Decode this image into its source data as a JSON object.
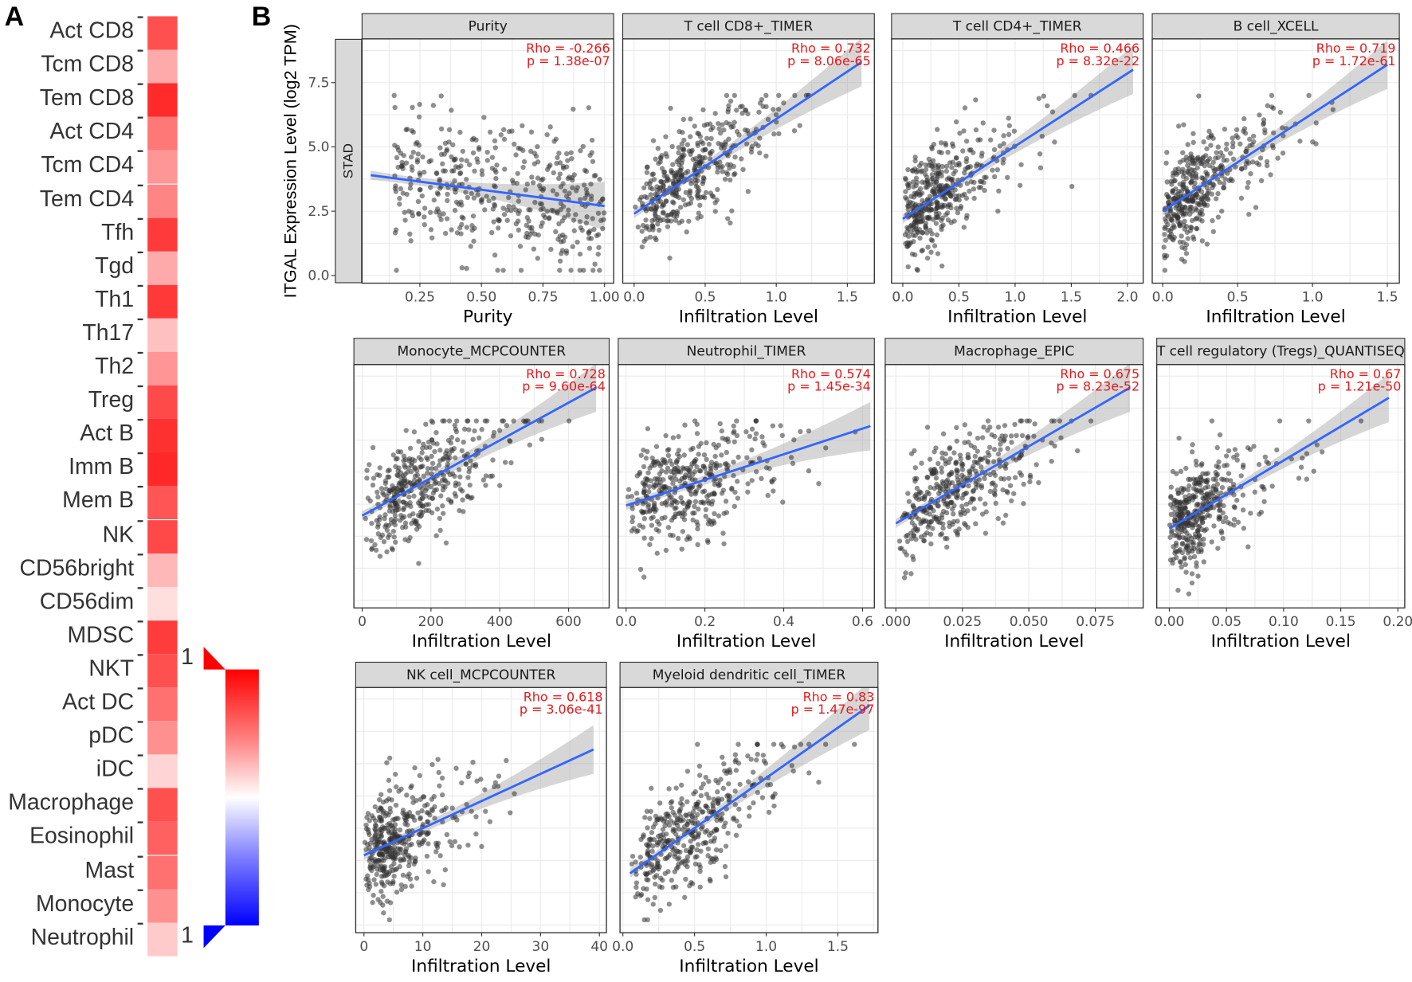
{
  "figure": {
    "panel_a_label": "A",
    "panel_b_label": "B"
  },
  "heatmap": {
    "rows": [
      {
        "label": "Act CD8",
        "color": "#ff5050"
      },
      {
        "label": "Tcm CD8",
        "color": "#ffaaaa"
      },
      {
        "label": "Tem CD8",
        "color": "#ff2a2a"
      },
      {
        "label": "Act CD4",
        "color": "#ff7878"
      },
      {
        "label": "Tcm CD4",
        "color": "#ff9696"
      },
      {
        "label": "Tem CD4",
        "color": "#ff8484"
      },
      {
        "label": "Tfh",
        "color": "#ff3a3a"
      },
      {
        "label": "Tgd",
        "color": "#ffaaaa"
      },
      {
        "label": "Th1",
        "color": "#ff3838"
      },
      {
        "label": "Th17",
        "color": "#ffc0c0"
      },
      {
        "label": "Th2",
        "color": "#ff9595"
      },
      {
        "label": "Treg",
        "color": "#ff4a4a"
      },
      {
        "label": "Act B",
        "color": "#ff3030"
      },
      {
        "label": "Imm B",
        "color": "#ff2828"
      },
      {
        "label": "Mem B",
        "color": "#ff5555"
      },
      {
        "label": "NK",
        "color": "#ff4848"
      },
      {
        "label": "CD56bright",
        "color": "#ffb8b8"
      },
      {
        "label": "CD56dim",
        "color": "#ffdede"
      },
      {
        "label": "MDSC",
        "color": "#ff3c3c"
      },
      {
        "label": "NKT",
        "color": "#ff5050"
      },
      {
        "label": "Act DC",
        "color": "#ff7070"
      },
      {
        "label": "pDC",
        "color": "#ff9090"
      },
      {
        "label": "iDC",
        "color": "#ffd4d4"
      },
      {
        "label": "Macrophage",
        "color": "#ff5050"
      },
      {
        "label": "Eosinophil",
        "color": "#ff6060"
      },
      {
        "label": "Mast",
        "color": "#ff7070"
      },
      {
        "label": "Monocyte",
        "color": "#ff9090"
      },
      {
        "label": "Neutrophil",
        "color": "#ffcaca"
      }
    ],
    "legend": {
      "top_label": "1",
      "bottom_label": "1",
      "high_color": "#ff0000",
      "low_color": "#0000ff"
    }
  },
  "chart_data": {
    "type": "scatter",
    "row_strip": "STAD",
    "ylabel": "ITGAL Expression Level (log2 TPM)",
    "ylim": [
      -0.3,
      9.2
    ],
    "yticks": [
      "0.0",
      "2.5",
      "5.0",
      "7.5"
    ],
    "ytick_values": [
      0,
      2.5,
      5,
      7.5
    ],
    "point_color": "#333333",
    "line_color": "#3366ff",
    "annotation_color": "#e41a1c",
    "panels": [
      {
        "title": "Purity",
        "xlabel": "Purity",
        "rho": "Rho = -0.266",
        "p": "p = 1.38e-07",
        "xlim": [
          0.015,
          1.037
        ],
        "xticks": [
          0.25,
          0.5,
          0.75,
          1.0
        ],
        "xtick_labels": [
          "0.25",
          "0.50",
          "0.75",
          "1.00"
        ],
        "fit": [
          [
            0.05,
            3.9
          ],
          [
            1.0,
            2.7
          ]
        ],
        "n": 420,
        "dist": "uniform"
      },
      {
        "title": "T cell CD8+_TIMER",
        "xlabel": "Infiltration Level",
        "rho": "Rho = 0.732",
        "p": "p = 8.06e-65",
        "xlim": [
          -0.08,
          1.69
        ],
        "xticks": [
          0,
          0.5,
          1.0,
          1.5
        ],
        "xtick_labels": [
          "0.0",
          "0.5",
          "1.0",
          "1.5"
        ],
        "fit": [
          [
            0,
            2.4
          ],
          [
            1.6,
            8.3
          ]
        ],
        "n": 400,
        "dist": "skew"
      },
      {
        "title": "T cell CD4+_TIMER",
        "xlabel": "Infiltration Level",
        "rho": "Rho = 0.466",
        "p": "p = 8.32e-22",
        "xlim": [
          -0.1,
          2.14
        ],
        "xticks": [
          0,
          0.5,
          1.0,
          1.5,
          2.0
        ],
        "xtick_labels": [
          "0.0",
          "0.5",
          "1.0",
          "1.5",
          "2.0"
        ],
        "fit": [
          [
            0,
            2.2
          ],
          [
            2.05,
            8.0
          ]
        ],
        "n": 400,
        "dist": "tight"
      },
      {
        "title": "B cell_XCELL",
        "xlabel": "Infiltration Level",
        "rho": "Rho = 0.719",
        "p": "p = 1.72e-61",
        "xlim": [
          -0.07,
          1.58
        ],
        "xticks": [
          0,
          0.5,
          1.0,
          1.5
        ],
        "xtick_labels": [
          "0.0",
          "0.5",
          "1.0",
          "1.5"
        ],
        "fit": [
          [
            0,
            2.5
          ],
          [
            1.5,
            8.2
          ]
        ],
        "n": 400,
        "dist": "tight"
      },
      {
        "title": "Monocyte_MCPCOUNTER",
        "xlabel": "Infiltration Level",
        "rho": "Rho = 0.728",
        "p": "p = 9.60e-64",
        "xlim": [
          -24,
          718
        ],
        "xticks": [
          0,
          200,
          400,
          600
        ],
        "xtick_labels": [
          "0",
          "200",
          "400",
          "600"
        ],
        "fit": [
          [
            0,
            3.3
          ],
          [
            680,
            8.3
          ]
        ],
        "n": 400,
        "dist": "skew"
      },
      {
        "title": "Neutrophil_TIMER",
        "xlabel": "Infiltration Level",
        "rho": "Rho = 0.574",
        "p": "p = 1.45e-34",
        "xlim": [
          -0.02,
          0.63
        ],
        "xticks": [
          0,
          0.2,
          0.4,
          0.6
        ],
        "xtick_labels": [
          "0.0",
          "0.2",
          "0.4",
          "0.6"
        ],
        "fit": [
          [
            0,
            3.7
          ],
          [
            0.62,
            6.8
          ]
        ],
        "n": 400,
        "dist": "skew"
      },
      {
        "title": "Macrophage_EPIC",
        "xlabel": "Infiltration Level",
        "rho": "Rho = 0.675",
        "p": "p = 8.23e-52",
        "xlim": [
          -0.004,
          0.093
        ],
        "xticks": [
          0,
          0.025,
          0.05,
          0.075
        ],
        "xtick_labels": [
          ".000",
          "0.025",
          "0.050",
          "0.075"
        ],
        "fit": [
          [
            0,
            3.0
          ],
          [
            0.088,
            8.3
          ]
        ],
        "n": 400,
        "dist": "skew"
      },
      {
        "title": "T cell regulatory (Tregs)_QUANTISEQ",
        "xlabel": "Infiltration Level",
        "rho": "Rho = 0.67",
        "p": "p = 1.21e-50",
        "xlim": [
          -0.011,
          0.206
        ],
        "xticks": [
          0,
          0.05,
          0.1,
          0.15,
          0.2
        ],
        "xtick_labels": [
          "0.00",
          "0.05",
          "0.10",
          "0.15",
          "0.20"
        ],
        "fit": [
          [
            0,
            2.8
          ],
          [
            0.192,
            7.9
          ]
        ],
        "n": 400,
        "dist": "tight"
      },
      {
        "title": "NK cell_MCPCOUNTER",
        "xlabel": "Infiltration Level",
        "rho": "Rho = 0.618",
        "p": "p = 3.06e-41",
        "xlim": [
          -1.4,
          41.2
        ],
        "xticks": [
          0,
          10,
          20,
          30,
          40
        ],
        "xtick_labels": [
          "0",
          "10",
          "20",
          "30",
          "40"
        ],
        "fit": [
          [
            0,
            2.7
          ],
          [
            39,
            6.8
          ]
        ],
        "n": 400,
        "dist": "tight"
      },
      {
        "title": "Myeloid dendritic cell_TIMER",
        "xlabel": "Infiltration Level",
        "rho": "Rho = 0.83",
        "p": "p = 1.47e-97",
        "xlim": [
          -0.02,
          1.78
        ],
        "xticks": [
          0,
          0.5,
          1.0,
          1.5
        ],
        "xtick_labels": [
          "0.0",
          "0.5",
          "1.0",
          "1.5"
        ],
        "fit": [
          [
            0.05,
            2.0
          ],
          [
            1.72,
            8.5
          ]
        ],
        "n": 400,
        "dist": "skew"
      }
    ]
  }
}
